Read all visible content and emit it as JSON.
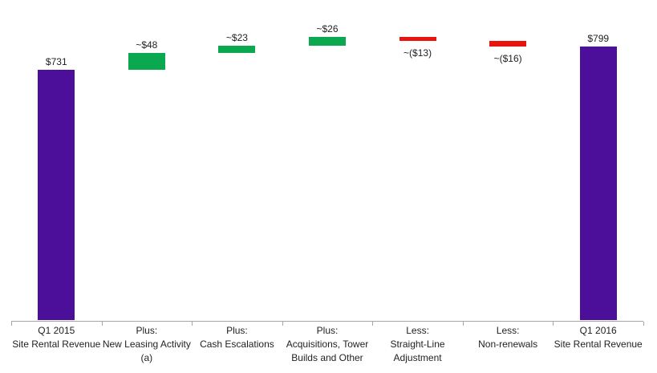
{
  "chart_data": {
    "type": "bar",
    "subtype": "waterfall",
    "title": "",
    "xlabel": "",
    "ylabel": "",
    "grid": "off",
    "y_axis_visible": false,
    "legend": "none",
    "categories": [
      [
        "Q1 2015",
        "Site Rental Revenue"
      ],
      [
        "Plus:",
        "New Leasing Activity",
        "(a)"
      ],
      [
        "Plus:",
        "Cash Escalations"
      ],
      [
        "Plus:",
        "Acquisitions, Tower",
        "Builds and Other"
      ],
      [
        "Less:",
        "Straight-Line",
        "Adjustment"
      ],
      [
        "Less:",
        "Non-renewals"
      ],
      [
        "Q1 2016",
        "Site Rental Revenue"
      ]
    ],
    "values": [
      731,
      48,
      23,
      26,
      -13,
      -16,
      799
    ],
    "value_labels": [
      "$731",
      "~$48",
      "~$23",
      "~$26",
      "~($13)",
      "~($16)",
      "$799"
    ],
    "bar_roles": [
      "total",
      "increase",
      "increase",
      "increase",
      "decrease",
      "decrease",
      "total"
    ],
    "cumulative_levels": [
      731,
      779,
      802,
      828,
      815,
      799,
      799
    ],
    "colors": {
      "total": "#4b0f99",
      "increase": "#0aa84f",
      "decrease": "#e8140e",
      "axis": "#a6a6a6",
      "text": "#1f1f1f",
      "background": "#ffffff"
    }
  }
}
